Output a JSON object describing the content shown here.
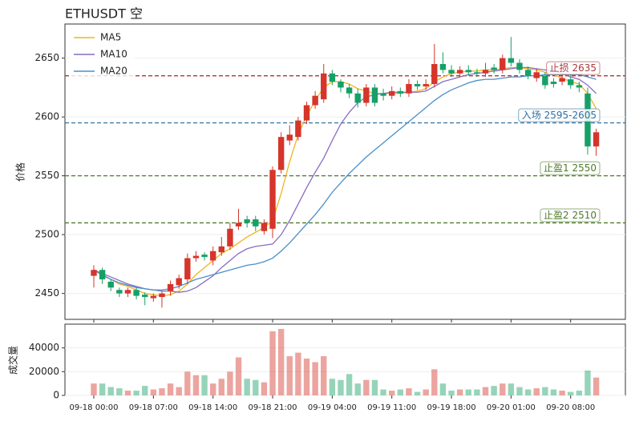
{
  "chart_data": [
    {
      "type": "candlestick",
      "title": "ETHUSDT 空",
      "ylabel": "价格",
      "open": [
        2465,
        2470,
        2460,
        2453,
        2450,
        2453,
        2449,
        2446,
        2447,
        2452,
        2457,
        2462,
        2480,
        2483,
        2478,
        2485,
        2490,
        2507,
        2513,
        2513,
        2503,
        2505,
        2555,
        2580,
        2583,
        2597,
        2610,
        2615,
        2637,
        2630,
        2625,
        2620,
        2612,
        2625,
        2620,
        2618,
        2622,
        2620,
        2628,
        2626,
        2628,
        2645,
        2640,
        2637,
        2640,
        2638,
        2637,
        2642,
        2640,
        2650,
        2646,
        2640,
        2633,
        2635,
        2630,
        2630,
        2632,
        2627,
        2620,
        2575
      ],
      "high": [
        2474,
        2472,
        2462,
        2455,
        2455,
        2455,
        2451,
        2450,
        2452,
        2461,
        2466,
        2484,
        2486,
        2485,
        2490,
        2498,
        2510,
        2522,
        2516,
        2516,
        2513,
        2558,
        2587,
        2593,
        2600,
        2613,
        2622,
        2645,
        2640,
        2632,
        2628,
        2624,
        2628,
        2628,
        2624,
        2626,
        2625,
        2632,
        2631,
        2632,
        2662,
        2655,
        2644,
        2643,
        2644,
        2641,
        2646,
        2645,
        2653,
        2668,
        2649,
        2643,
        2641,
        2638,
        2633,
        2636,
        2636,
        2630,
        2625,
        2590
      ],
      "low": [
        2455,
        2458,
        2452,
        2447,
        2447,
        2445,
        2440,
        2443,
        2438,
        2448,
        2454,
        2458,
        2477,
        2478,
        2474,
        2482,
        2487,
        2504,
        2506,
        2503,
        2500,
        2497,
        2552,
        2576,
        2580,
        2594,
        2607,
        2612,
        2627,
        2621,
        2616,
        2608,
        2609,
        2609,
        2614,
        2615,
        2617,
        2617,
        2623,
        2623,
        2625,
        2637,
        2634,
        2634,
        2635,
        2634,
        2634,
        2637,
        2637,
        2643,
        2637,
        2632,
        2630,
        2624,
        2625,
        2627,
        2624,
        2621,
        2568,
        2567
      ],
      "close": [
        2470,
        2462,
        2455,
        2450,
        2453,
        2448,
        2447,
        2448,
        2450,
        2458,
        2463,
        2480,
        2482,
        2481,
        2486,
        2490,
        2505,
        2510,
        2510,
        2507,
        2510,
        2555,
        2583,
        2585,
        2597,
        2610,
        2618,
        2637,
        2630,
        2625,
        2620,
        2612,
        2625,
        2612,
        2618,
        2622,
        2620,
        2628,
        2626,
        2628,
        2645,
        2640,
        2637,
        2640,
        2638,
        2637,
        2640,
        2640,
        2650,
        2646,
        2640,
        2635,
        2638,
        2627,
        2628,
        2633,
        2627,
        2625,
        2575,
        2587
      ],
      "up_color": "#d5352a",
      "down_color": "#16a067",
      "series": [
        {
          "name": "MA5",
          "color": "#f0b41e",
          "values": [
            2470,
            2465,
            2462,
            2458,
            2456,
            2453,
            2450,
            2449,
            2448,
            2449,
            2452,
            2458,
            2466,
            2472,
            2478,
            2484,
            2488,
            2493,
            2498,
            2502,
            2506,
            2512,
            2535,
            2562,
            2585,
            2601,
            2614,
            2625,
            2630,
            2630,
            2628,
            2624,
            2622,
            2620,
            2620,
            2620,
            2620,
            2621,
            2622,
            2624,
            2630,
            2634,
            2637,
            2638,
            2639,
            2639,
            2640,
            2640,
            2641,
            2642,
            2642,
            2641,
            2640,
            2638,
            2636,
            2633,
            2630,
            2628,
            2620,
            2607
          ]
        },
        {
          "name": "MA10",
          "color": "#8a6cc0",
          "values": [
            2470,
            2467,
            2464,
            2461,
            2458,
            2456,
            2454,
            2453,
            2452,
            2452,
            2451,
            2452,
            2455,
            2460,
            2465,
            2472,
            2478,
            2484,
            2488,
            2490,
            2491,
            2492,
            2500,
            2512,
            2526,
            2540,
            2553,
            2565,
            2580,
            2594,
            2604,
            2612,
            2617,
            2619,
            2620,
            2621,
            2621,
            2621,
            2621,
            2622,
            2626,
            2630,
            2632,
            2634,
            2636,
            2637,
            2638,
            2639,
            2640,
            2641,
            2642,
            2642,
            2641,
            2640,
            2639,
            2637,
            2634,
            2632,
            2627,
            2620
          ]
        },
        {
          "name": "MA20",
          "color": "#4a8fc9",
          "values": [
            2470,
            2466,
            2462,
            2459,
            2457,
            2455,
            2454,
            2453,
            2453,
            2454,
            2456,
            2459,
            2462,
            2464,
            2466,
            2468,
            2470,
            2472,
            2474,
            2475,
            2477,
            2480,
            2486,
            2493,
            2501,
            2509,
            2517,
            2526,
            2536,
            2544,
            2552,
            2559,
            2566,
            2572,
            2578,
            2584,
            2590,
            2596,
            2602,
            2608,
            2614,
            2619,
            2623,
            2626,
            2629,
            2631,
            2632,
            2632,
            2633,
            2634,
            2634,
            2635,
            2635,
            2636,
            2636,
            2636,
            2636,
            2636,
            2634,
            2632
          ]
        }
      ],
      "hlines": [
        {
          "value": 2635,
          "label": "止损 2635",
          "color": "#a8393f"
        },
        {
          "value": 2595,
          "label": "入场 2595-2605",
          "color": "#2f6f9f"
        },
        {
          "value": 2550,
          "label": "止盈1 2550",
          "color": "#4f7a2a"
        },
        {
          "value": 2510,
          "label": "止盈2 2510",
          "color": "#4f7a2a"
        }
      ],
      "ylim": [
        2428,
        2679
      ],
      "yticks": [
        2450,
        2500,
        2550,
        2600,
        2650
      ],
      "grid": true,
      "legend": "upper left"
    },
    {
      "type": "bar",
      "ylabel": "成交量",
      "categories": [
        "09-18 00:00",
        null,
        null,
        null,
        null,
        null,
        null,
        "09-18 07:00",
        null,
        null,
        null,
        null,
        null,
        null,
        "09-18 14:00",
        null,
        null,
        null,
        null,
        null,
        null,
        "09-18 21:00",
        null,
        null,
        null,
        null,
        null,
        null,
        "09-19 04:00",
        null,
        null,
        null,
        null,
        null,
        null,
        "09-19 11:00",
        null,
        null,
        null,
        null,
        null,
        null,
        "09-19 18:00",
        null,
        null,
        null,
        null,
        null,
        null,
        "09-20 01:00",
        null,
        null,
        null,
        null,
        null,
        null,
        "09-20 08:00",
        null,
        null,
        null
      ],
      "values": [
        10000,
        10000,
        7000,
        6000,
        4000,
        4000,
        8000,
        5000,
        6000,
        10000,
        7000,
        20000,
        17000,
        17000,
        10000,
        14000,
        20000,
        32000,
        14000,
        13000,
        11000,
        54000,
        56000,
        33000,
        36000,
        31000,
        28000,
        33000,
        14000,
        13000,
        18000,
        10000,
        13000,
        13000,
        5000,
        4000,
        5000,
        6000,
        3000,
        5000,
        22000,
        10000,
        4000,
        5000,
        5000,
        5000,
        7000,
        8000,
        10000,
        10000,
        7000,
        5000,
        6000,
        7000,
        5000,
        4000,
        3000,
        4000,
        21000,
        15000
      ],
      "ylim": [
        0,
        60000
      ],
      "yticks": [
        0,
        20000,
        40000
      ],
      "grid": true
    }
  ]
}
